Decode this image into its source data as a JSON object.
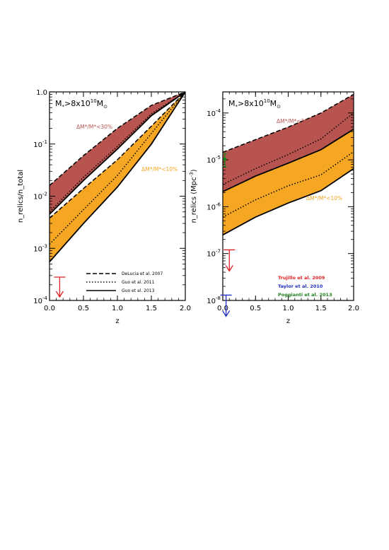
{
  "chart_data": [
    {
      "type": "area",
      "panel_label": "M*>8x10^10 Msun",
      "xlabel": "z",
      "ylabel": "n_relics/n_total",
      "xlim": [
        0,
        2
      ],
      "ylim": [
        0.0001,
        1
      ],
      "yscale": "log",
      "x_ticks": [
        "0.0",
        "0.5",
        "1.0",
        "1.5",
        "2.0"
      ],
      "y_ticks": [
        "10^-4",
        "10^-3",
        "10^-2",
        "10^-1",
        "1.0"
      ],
      "band_labels": {
        "upper": {
          "text": "ΔM*/M*<30%",
          "color": "#b85450"
        },
        "lower": {
          "text": "ΔM*/M*<10%",
          "color": "#f5a623"
        }
      },
      "legend": [
        {
          "text": "DeLucia et al. 2007",
          "style": "dashed"
        },
        {
          "text": "Guo et al. 2011",
          "style": "dotted"
        },
        {
          "text": "Guo et al. 2013",
          "style": "solid"
        }
      ],
      "series": [
        {
          "band": "30%",
          "bound": "upper",
          "model": "DeLucia et al. 2007",
          "x": [
            0,
            0.5,
            1.0,
            1.5,
            2.0
          ],
          "y": [
            0.016,
            0.06,
            0.2,
            0.55,
            1.0
          ]
        },
        {
          "band": "30%",
          "bound": "lower",
          "model": "Guo et al. 2013",
          "x": [
            0,
            0.5,
            1.0,
            1.5,
            2.0
          ],
          "y": [
            0.0045,
            0.02,
            0.08,
            0.35,
            1.0
          ]
        },
        {
          "band": "30%",
          "bound": "middle",
          "model": "Guo et al. 2011",
          "x": [
            0,
            0.5,
            1.0,
            1.5,
            2.0
          ],
          "y": [
            0.005,
            0.023,
            0.09,
            0.38,
            1.0
          ]
        },
        {
          "band": "10%",
          "bound": "upper",
          "model": "DeLucia et al. 2007",
          "x": [
            0,
            0.5,
            1.0,
            1.5,
            2.0
          ],
          "y": [
            0.0038,
            0.014,
            0.05,
            0.22,
            1.0
          ]
        },
        {
          "band": "10%",
          "bound": "lower",
          "model": "Guo et al. 2013",
          "x": [
            0,
            0.5,
            1.0,
            1.5,
            2.0
          ],
          "y": [
            0.00055,
            0.003,
            0.015,
            0.1,
            1.0
          ]
        },
        {
          "band": "10%",
          "bound": "middle",
          "model": "Guo et al. 2011",
          "x": [
            0,
            0.5,
            1.0,
            1.5,
            2.0
          ],
          "y": [
            0.0012,
            0.0055,
            0.025,
            0.16,
            1.0
          ]
        }
      ],
      "observations": [
        {
          "x": 0.15,
          "y": 0.00028,
          "type": "upper-limit",
          "color": "#e02020"
        }
      ]
    },
    {
      "type": "area",
      "panel_label": "M*>8x10^10 Msun",
      "xlabel": "z",
      "ylabel": "n_relics (Mpc^-3)",
      "xlim": [
        0,
        2
      ],
      "ylim": [
        1e-08,
        0.0003
      ],
      "yscale": "log",
      "x_ticks": [
        "0.0",
        "0.5",
        "1.0",
        "1.5",
        "2.0"
      ],
      "y_ticks": [
        "10^-8",
        "10^-7",
        "10^-6",
        "10^-5",
        "10^-4"
      ],
      "band_labels": {
        "upper": {
          "text": "ΔM*/M*<30%",
          "color": "#b85450"
        },
        "lower": {
          "text": "ΔM*/M*<10%",
          "color": "#f5a623"
        }
      },
      "legend": [
        {
          "text": "Trujillo et al. 2009",
          "color": "#e02020"
        },
        {
          "text": "Taylor et al. 2010",
          "color": "#2030c0"
        },
        {
          "text": "Poggianti et al. 2013",
          "color": "#208020"
        }
      ],
      "series": [
        {
          "band": "30%",
          "bound": "upper",
          "model": "DeLucia et al. 2007",
          "x": [
            0,
            0.5,
            1.0,
            1.5,
            2.0
          ],
          "y": [
            1.45e-05,
            2.7e-05,
            5e-05,
            0.0001,
            0.00025
          ]
        },
        {
          "band": "30%",
          "bound": "lower",
          "model": "Guo et al. 2013",
          "x": [
            0,
            0.5,
            1.0,
            1.5,
            2.0
          ],
          "y": [
            2.1e-06,
            4.5e-06,
            8.5e-06,
            1.65e-05,
            4.5e-05
          ]
        },
        {
          "band": "30%",
          "bound": "middle",
          "model": "Guo et al. 2011",
          "x": [
            0,
            0.5,
            1.0,
            1.5,
            2.0
          ],
          "y": [
            3e-06,
            6.5e-06,
            1.3e-05,
            2.8e-05,
            0.0001
          ]
        },
        {
          "band": "10%",
          "bound": "upper",
          "model": "DeLucia et al. 2007",
          "x": [
            0,
            0.5,
            1.0,
            1.5,
            2.0
          ],
          "y": [
            2.1e-06,
            4.5e-06,
            8.5e-06,
            1.65e-05,
            4.5e-05
          ]
        },
        {
          "band": "10%",
          "bound": "lower",
          "model": "Guo et al. 2013",
          "x": [
            0,
            0.5,
            1.0,
            1.5,
            2.0
          ],
          "y": [
            2.5e-07,
            6e-07,
            1.2e-06,
            2.2e-06,
            6.5e-06
          ]
        },
        {
          "band": "10%",
          "bound": "middle",
          "model": "Guo et al. 2011",
          "x": [
            0,
            0.5,
            1.0,
            1.5,
            2.0
          ],
          "y": [
            6e-07,
            1.4e-06,
            2.8e-06,
            4.8e-06,
            1.5e-05
          ]
        }
      ],
      "observations": [
        {
          "x": 0.1,
          "y": 1.2e-07,
          "type": "upper-limit",
          "color": "#e02020"
        },
        {
          "x": 0.05,
          "y": 1.3e-08,
          "type": "upper-limit",
          "color": "#2030c0"
        },
        {
          "x": 0.03,
          "y": 1.04e-05,
          "type": "point-errorbar",
          "color": "#208020",
          "err_lo": 7.2e-06,
          "err_hi": 1.35e-05
        }
      ]
    }
  ],
  "colors": {
    "band_30": "#b85450",
    "band_10": "#f5a623",
    "frame": "#000000"
  }
}
